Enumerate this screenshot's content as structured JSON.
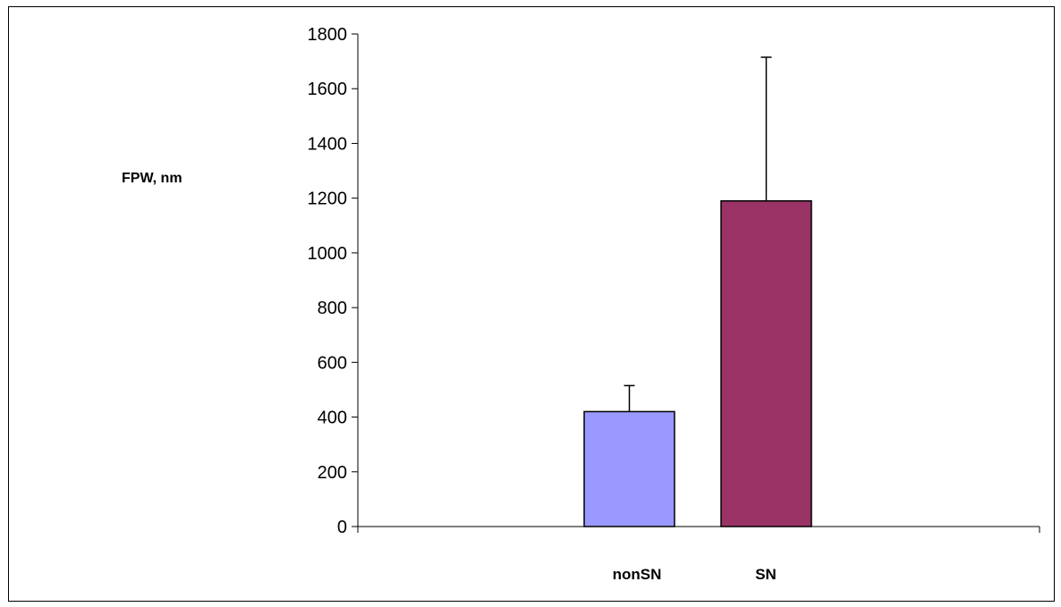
{
  "chart_data": {
    "type": "bar",
    "title": "",
    "xlabel": "",
    "ylabel": "FPW, nm",
    "ylim": [
      0,
      1800
    ],
    "yticks": [
      0,
      200,
      400,
      600,
      800,
      1000,
      1200,
      1400,
      1600,
      1800
    ],
    "categories": [
      "nonSN",
      "SN"
    ],
    "values": [
      420,
      1190
    ],
    "error_bars": [
      95,
      525
    ],
    "colors": [
      "#9999ff",
      "#993366"
    ],
    "grid": false,
    "legend": "none"
  }
}
